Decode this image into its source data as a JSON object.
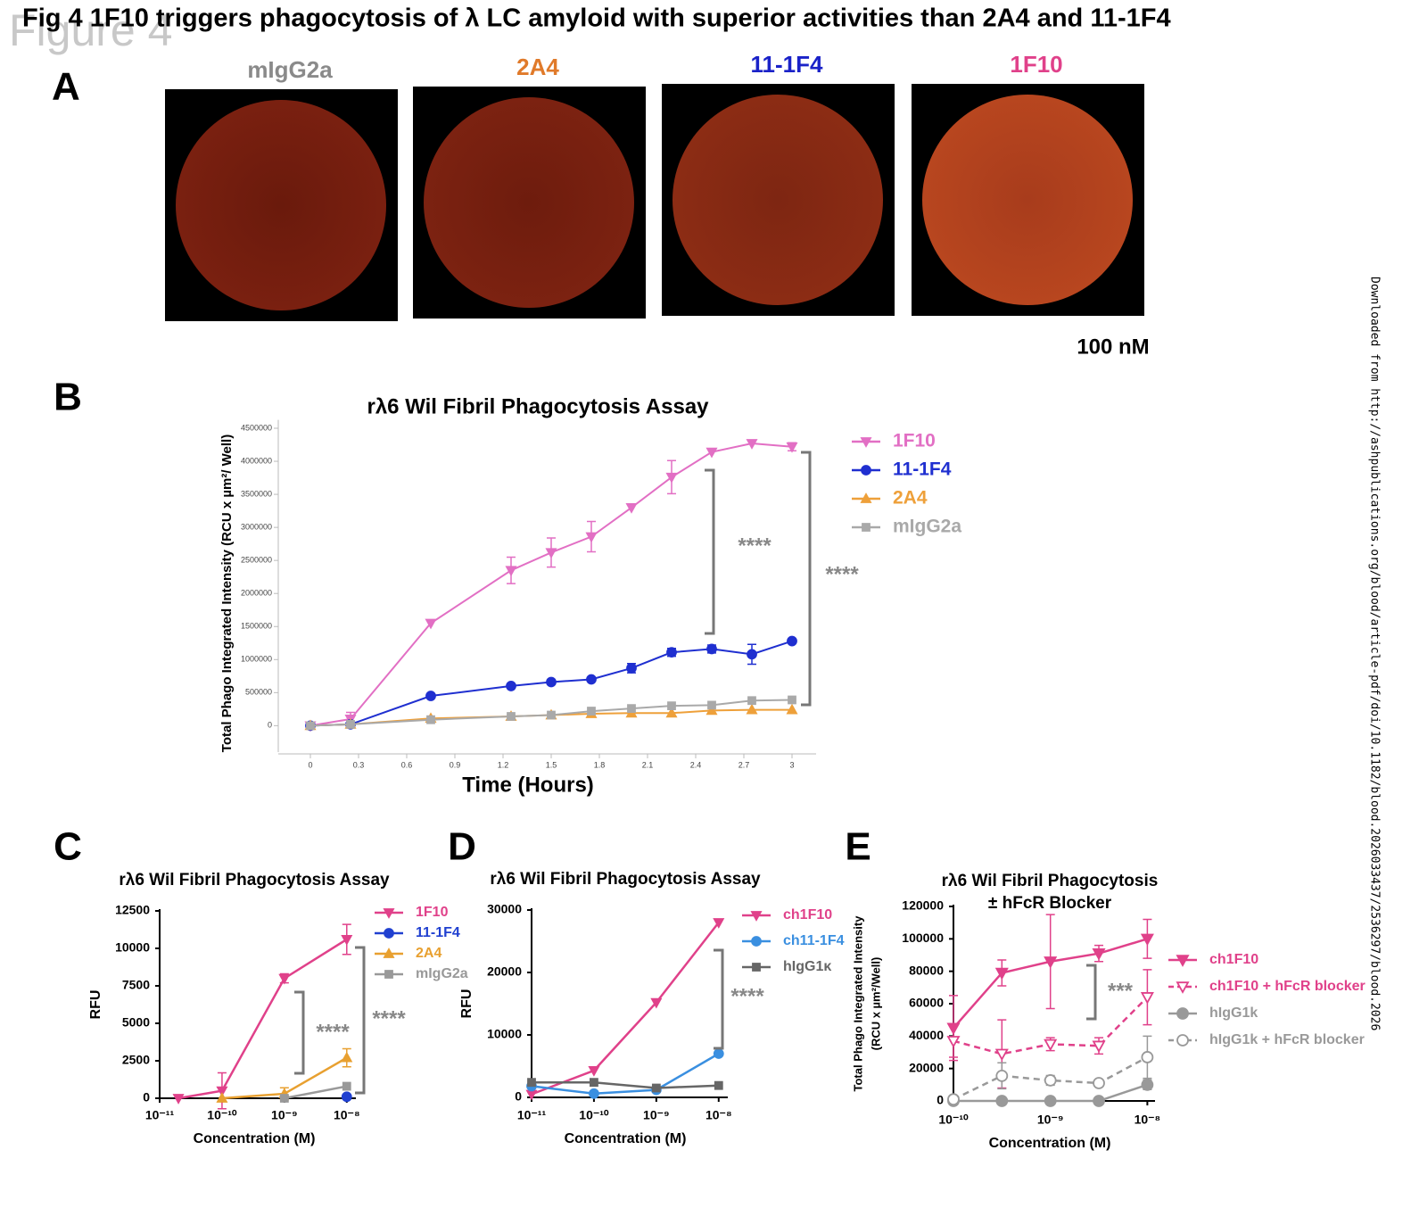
{
  "figure_label": "Figure 4",
  "title": "Fig 4 1F10 triggers phagocytosis of λ LC amyloid with superior activities than 2A4 and 11-1F4",
  "side_note": "Downloaded from http://ashpublications.org/blood/article-pdf/doi/10.1182/blood.2026033437/2536297/blood.2026",
  "panel_a": {
    "label": "A",
    "concentration": "100 nM",
    "images": [
      {
        "label": "mIgG2a",
        "color": "#8a8a8a"
      },
      {
        "label": "2A4",
        "color": "#e07a2a"
      },
      {
        "label": "11-1F4",
        "color": "#1a22c8"
      },
      {
        "label": "1F10",
        "color": "#e0418a"
      }
    ]
  },
  "chart_data": [
    {
      "type": "line",
      "panel": "B",
      "title": "rλ6 Wil Fibril Phagocytosis Assay",
      "x_label": "Time (Hours)",
      "y_label": "Total Phago Integrated Intensity (RCU x µm²/ Well)",
      "x": [
        0,
        0.25,
        0.75,
        1.25,
        1.5,
        1.75,
        2,
        2.25,
        2.5,
        2.75,
        3
      ],
      "xlim": [
        -0.2,
        3.15
      ],
      "xticks": [
        0,
        0.3,
        0.6,
        0.9,
        1.2,
        1.5,
        1.8,
        2.1,
        2.4,
        2.7,
        3
      ],
      "ylim": [
        -400000,
        4600000
      ],
      "yticks": [
        0,
        500000,
        1000000,
        1500000,
        2000000,
        2500000,
        3000000,
        3500000,
        4000000,
        4500000
      ],
      "series": [
        {
          "name": "1F10",
          "color": "#e26fc4",
          "marker": "triangle-down",
          "values": [
            0,
            100000,
            1550000,
            2350000,
            2620000,
            2860000,
            3300000,
            3760000,
            4140000,
            4270000,
            4220000
          ],
          "errors": [
            0,
            100000,
            0,
            200000,
            220000,
            230000,
            0,
            250000,
            0,
            0,
            60000
          ]
        },
        {
          "name": "11-1F4",
          "color": "#1f2fd0",
          "marker": "circle",
          "values": [
            0,
            20000,
            450000,
            600000,
            660000,
            700000,
            870000,
            1110000,
            1160000,
            1080000,
            1280000
          ],
          "errors": [
            0,
            0,
            0,
            0,
            0,
            0,
            70000,
            60000,
            60000,
            150000,
            0
          ]
        },
        {
          "name": "2A4",
          "color": "#eea03a",
          "marker": "triangle-up",
          "values": [
            0,
            20000,
            110000,
            140000,
            160000,
            180000,
            190000,
            190000,
            230000,
            240000,
            240000
          ]
        },
        {
          "name": "mIgG2a",
          "color": "#a9a9a9",
          "marker": "square",
          "values": [
            0,
            20000,
            90000,
            140000,
            160000,
            220000,
            260000,
            300000,
            310000,
            380000,
            390000
          ]
        }
      ],
      "annotations": [
        "****",
        "****"
      ]
    },
    {
      "type": "line",
      "panel": "C",
      "title": "rλ6 Wil Fibril Phagocytosis Assay",
      "x_label": "Concentration (M)",
      "y_label": "RFU",
      "x_log": true,
      "x": [
        2e-11,
        1e-10,
        1e-09,
        1e-08
      ],
      "xlim": [
        1e-11,
        1.4e-08
      ],
      "xticks": [
        {
          "value": 1e-11,
          "label": "10⁻¹¹"
        },
        {
          "value": 1e-10,
          "label": "10⁻¹⁰"
        },
        {
          "value": 1e-09,
          "label": "10⁻⁹"
        },
        {
          "value": 1e-08,
          "label": "10⁻⁸"
        }
      ],
      "ylim": [
        0,
        12500
      ],
      "yticks": [
        0,
        2500,
        5000,
        7500,
        10000,
        12500
      ],
      "series": [
        {
          "name": "1F10",
          "color": "#e0418a",
          "marker": "triangle-down",
          "values": [
            0,
            500,
            8000,
            10600
          ],
          "errors": [
            0,
            1200,
            300,
            1000
          ]
        },
        {
          "name": "11-1F4",
          "color": "#2040d0",
          "marker": "circle",
          "values": [
            null,
            null,
            null,
            100
          ]
        },
        {
          "name": "2A4",
          "color": "#e8a030",
          "marker": "triangle-up",
          "values": [
            null,
            0,
            300,
            2700
          ],
          "errors": [
            null,
            0,
            400,
            600
          ]
        },
        {
          "name": "mIgG2a",
          "color": "#999999",
          "marker": "square",
          "values": [
            null,
            null,
            0,
            800
          ]
        }
      ],
      "annotations": [
        "****",
        "****"
      ]
    },
    {
      "type": "line",
      "panel": "D",
      "title": "rλ6 Wil Fibril Phagocytosis Assay",
      "x_label": "Concentration (M)",
      "y_label": "RFU",
      "x_log": true,
      "x": [
        1e-11,
        1e-10,
        1e-09,
        1e-08
      ],
      "xlim": [
        1e-11,
        1.4e-08
      ],
      "xticks": [
        {
          "value": 1e-11,
          "label": "10⁻¹¹"
        },
        {
          "value": 1e-10,
          "label": "10⁻¹⁰"
        },
        {
          "value": 1e-09,
          "label": "10⁻⁹"
        },
        {
          "value": 1e-08,
          "label": "10⁻⁸"
        }
      ],
      "ylim": [
        0,
        30000
      ],
      "yticks": [
        0,
        10000,
        20000,
        30000
      ],
      "series": [
        {
          "name": "ch1F10",
          "color": "#e0418a",
          "marker": "triangle-down",
          "values": [
            500,
            4300,
            15200,
            28000
          ]
        },
        {
          "name": "ch11-1F4",
          "color": "#3a8fe0",
          "marker": "circle",
          "values": [
            1800,
            600,
            1200,
            7000
          ]
        },
        {
          "name": "hIgG1κ",
          "color": "#666666",
          "marker": "square",
          "values": [
            2400,
            2400,
            1500,
            1900
          ]
        }
      ],
      "annotations": [
        "****"
      ]
    },
    {
      "type": "line",
      "panel": "E",
      "title": "rλ6 Wil Fibril Phagocytosis",
      "subtitle": "± hFcR Blocker",
      "x_label": "Concentration (M)",
      "y_label": [
        "Total Phago Integrated Intensity",
        "(RCU x µm²/Well)"
      ],
      "x_log": true,
      "x": [
        1e-10,
        3.16e-10,
        1e-09,
        3.16e-09,
        1e-08
      ],
      "xlim": [
        1e-10,
        1.2e-08
      ],
      "xticks": [
        {
          "value": 1e-10,
          "label": "10⁻¹⁰"
        },
        {
          "value": 1e-09,
          "label": "10⁻⁹"
        },
        {
          "value": 1e-08,
          "label": "10⁻⁸"
        }
      ],
      "ylim": [
        0,
        120000
      ],
      "yticks": [
        0,
        20000,
        40000,
        60000,
        80000,
        100000,
        120000
      ],
      "series": [
        {
          "name": "ch1F10",
          "color": "#e0418a",
          "marker": "triangle-down",
          "values": [
            45000,
            79000,
            86000,
            91000,
            100000
          ],
          "errors": [
            20000,
            8000,
            29000,
            5000,
            12000
          ]
        },
        {
          "name": "ch1F10 + hFcR blocker",
          "color": "#e0418a",
          "marker": "triangle-down",
          "open": true,
          "dashed": true,
          "values": [
            37000,
            29000,
            35000,
            34000,
            64000
          ],
          "errors": [
            10000,
            21000,
            4000,
            5000,
            17000
          ]
        },
        {
          "name": "hIgG1k",
          "color": "#999999",
          "marker": "circle",
          "values": [
            0,
            0,
            0,
            0,
            10000
          ],
          "errors": [
            0,
            0,
            0,
            0,
            3000
          ]
        },
        {
          "name": "hIgG1k + hFcR blocker",
          "color": "#999999",
          "marker": "circle",
          "open": true,
          "dashed": true,
          "values": [
            1000,
            15500,
            12700,
            11000,
            27000
          ],
          "errors": [
            2000,
            8000,
            3000,
            1000,
            13000
          ]
        }
      ],
      "annotations": [
        "***"
      ]
    }
  ]
}
